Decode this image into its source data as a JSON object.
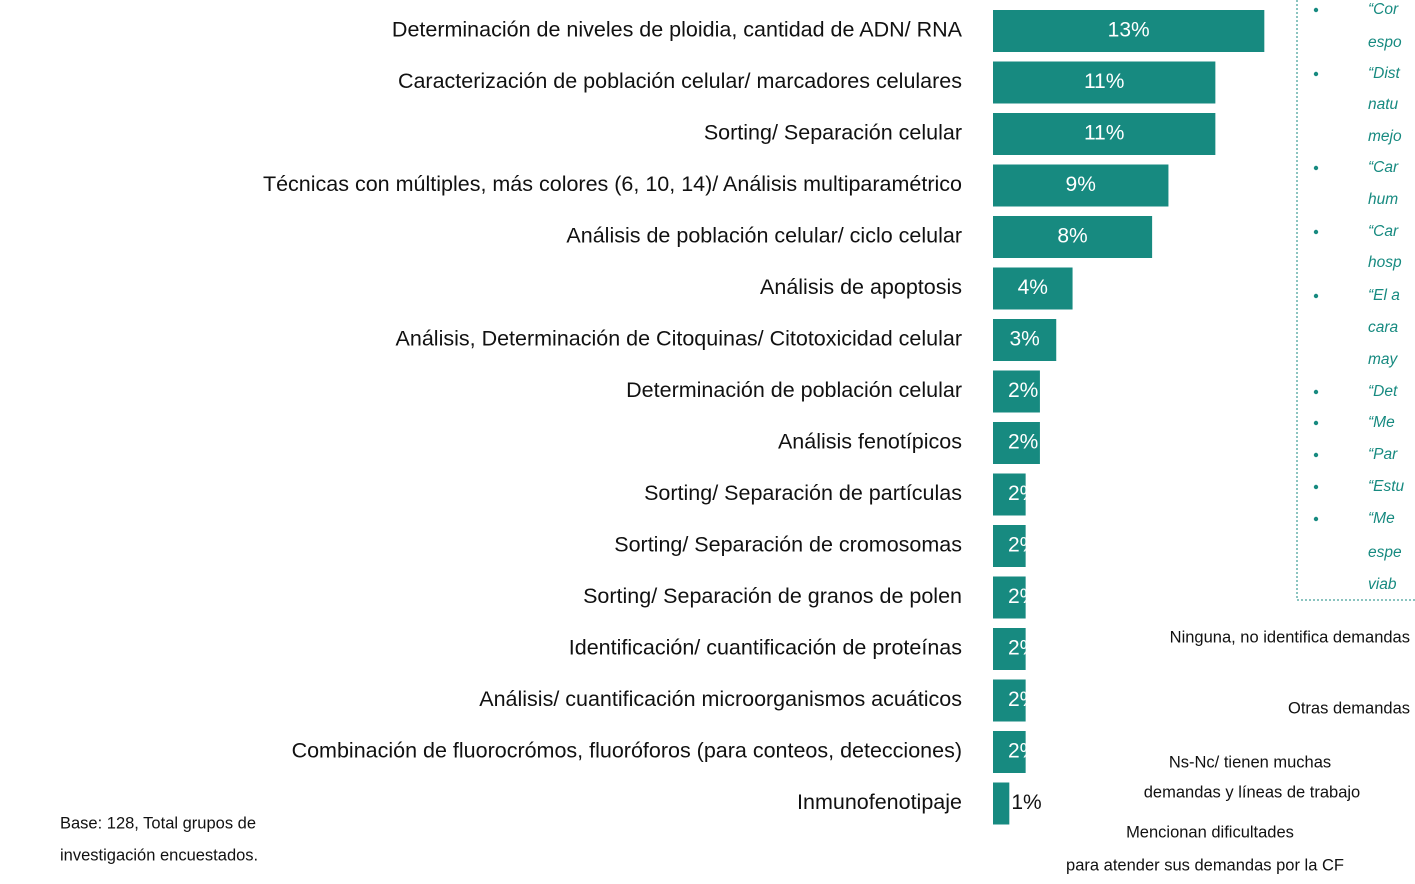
{
  "chart_data": {
    "type": "bar",
    "orientation": "horizontal",
    "color": "#178a80",
    "categories": [
      "Determinación de niveles de ploidia, cantidad de ADN/ RNA",
      "Caracterización de población celular/ marcadores celulares",
      "Sorting/ Separación celular",
      "Técnicas con múltiples, más colores (6, 10, 14)/ Análisis multiparamétrico",
      "Análisis de población celular/ ciclo celular",
      "Análisis de apoptosis",
      "Análisis, Determinación de Citoquinas/ Citotoxicidad celular",
      "Determinación de población celular",
      "Análisis fenotípicos",
      "Sorting/ Separación de partículas",
      "Sorting/ Separación de cromosomas",
      "Sorting/ Separación de granos de polen",
      "Identificación/ cuantificación de proteínas",
      "Análisis/ cuantificación microorganismos acuáticos",
      "Combinación de fluorocrómos, fluoróforos (para conteos, detecciones)",
      "Inmunofenotipaje"
    ],
    "values": [
      13.3,
      10.9,
      10.9,
      8.6,
      7.8,
      3.9,
      3.1,
      2.3,
      2.3,
      1.6,
      1.6,
      1.6,
      1.6,
      1.6,
      1.6,
      0.8
    ],
    "value_labels": [
      "13%",
      "11%",
      "11%",
      "9%",
      "8%",
      "4%",
      "3%",
      "2%",
      "2%",
      "2%",
      "2%",
      "2%",
      "2%",
      "2%",
      "2%",
      "1%"
    ],
    "xlim": [
      0,
      15
    ],
    "note": [
      "Base: 128, Total grupos de",
      "investigación encuestados."
    ],
    "quotes": [
      [
        "“Cor",
        "espo"
      ],
      [
        "“Dist",
        "natu",
        "mejo"
      ],
      [
        "“Car",
        "hum"
      ],
      [
        "“Car",
        "hosp"
      ],
      [
        "“El a",
        "cara",
        "may"
      ],
      [
        "“Det"
      ],
      [
        "“Me"
      ],
      [
        "“Par"
      ],
      [
        "“Estu"
      ],
      [
        "“Me",
        "espe",
        "viab"
      ]
    ],
    "side_labels": [
      [
        "Ninguna, no identifica demandas"
      ],
      [
        "Otras demandas"
      ],
      [
        "Ns-Nc/ tienen muchas",
        "demandas y líneas de trabajo"
      ],
      [
        "Mencionan dificultades",
        "para atender sus demandas por la CF"
      ]
    ]
  }
}
